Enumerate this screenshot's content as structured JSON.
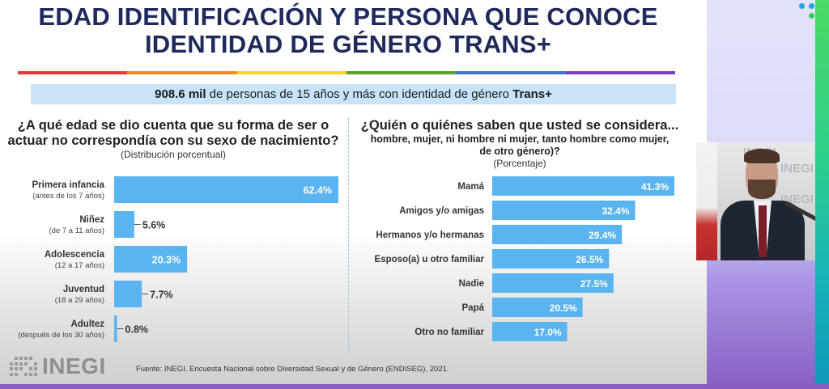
{
  "title": {
    "line1": "EDAD IDENTIFICACIÓN Y PERSONA QUE CONOCE",
    "line2": "IDENTIDAD DE GÉNERO TRANS+"
  },
  "rainbow_colors": [
    "#e53935",
    "#f28c28",
    "#f6d32d",
    "#5aa02c",
    "#3f74c9",
    "#7b3fb3"
  ],
  "banner": {
    "highlight": "908.6 mil",
    "text": " de personas de 15 años y más con identidad de género ",
    "highlight2": "Trans+"
  },
  "left_question": {
    "line1": "¿A qué edad se dio cuenta que su forma de ser o",
    "line2": "actuar no correspondía con su sexo de nacimiento?",
    "subtitle": "(Distribución porcentual)"
  },
  "right_question": {
    "line1": "¿Quién o quiénes saben que usted se considera...",
    "line2": "hombre, mujer, ni hombre ni mujer, tanto hombre como mujer,",
    "line3": "de otro género)?",
    "subtitle": "(Porcentaje)"
  },
  "chart_data": [
    {
      "type": "bar",
      "orientation": "horizontal",
      "title": "¿A qué edad se dio cuenta que su forma de ser o actuar no correspondía con su sexo de nacimiento?",
      "subtitle": "(Distribución porcentual)",
      "categories": [
        "Primera infancia",
        "Niñez",
        "Adolescencia",
        "Juventud",
        "Adultez"
      ],
      "category_notes": [
        "(antes de los 7 años)",
        "(de 7 a 11 años)",
        "(12 a 17 años)",
        "(18 a 29 años)",
        "(después de los 30 años)"
      ],
      "values": [
        62.4,
        5.6,
        20.3,
        7.7,
        0.8
      ],
      "value_labels": [
        "62.4%",
        "5.6%",
        "20.3%",
        "7.7%",
        "0.8%"
      ],
      "unit": "%",
      "xlim": [
        0,
        62.4
      ],
      "grid": false,
      "bar_color": "#5ab4f0"
    },
    {
      "type": "bar",
      "orientation": "horizontal",
      "title": "¿Quién o quiénes saben que usted se considera... hombre, mujer, ni hombre ni mujer, tanto hombre como mujer, de otro género)?",
      "subtitle": "(Porcentaje)",
      "categories": [
        "Mamá",
        "Amigos y/o amigas",
        "Hermanos y/o hermanas",
        "Esposo(a) u otro familiar",
        "Nadie",
        "Papá",
        "Otro no familiar"
      ],
      "values": [
        41.3,
        32.4,
        29.4,
        26.5,
        27.5,
        20.5,
        17.0
      ],
      "value_labels": [
        "41.3%",
        "32.4%",
        "29.4%",
        "26.5%",
        "27.5%",
        "20.5%",
        "17.0%"
      ],
      "unit": "%",
      "xlim": [
        0,
        41.3
      ],
      "grid": false,
      "bar_color": "#5ab4f0"
    }
  ],
  "footer": {
    "logo_text": "INEGI",
    "source": "Fuente:  INEGI. Encuesta Nacional sobre Diversidad Sexual y de Género (ENDISEG), 2021."
  },
  "video": {
    "watermark": "INEGI"
  }
}
